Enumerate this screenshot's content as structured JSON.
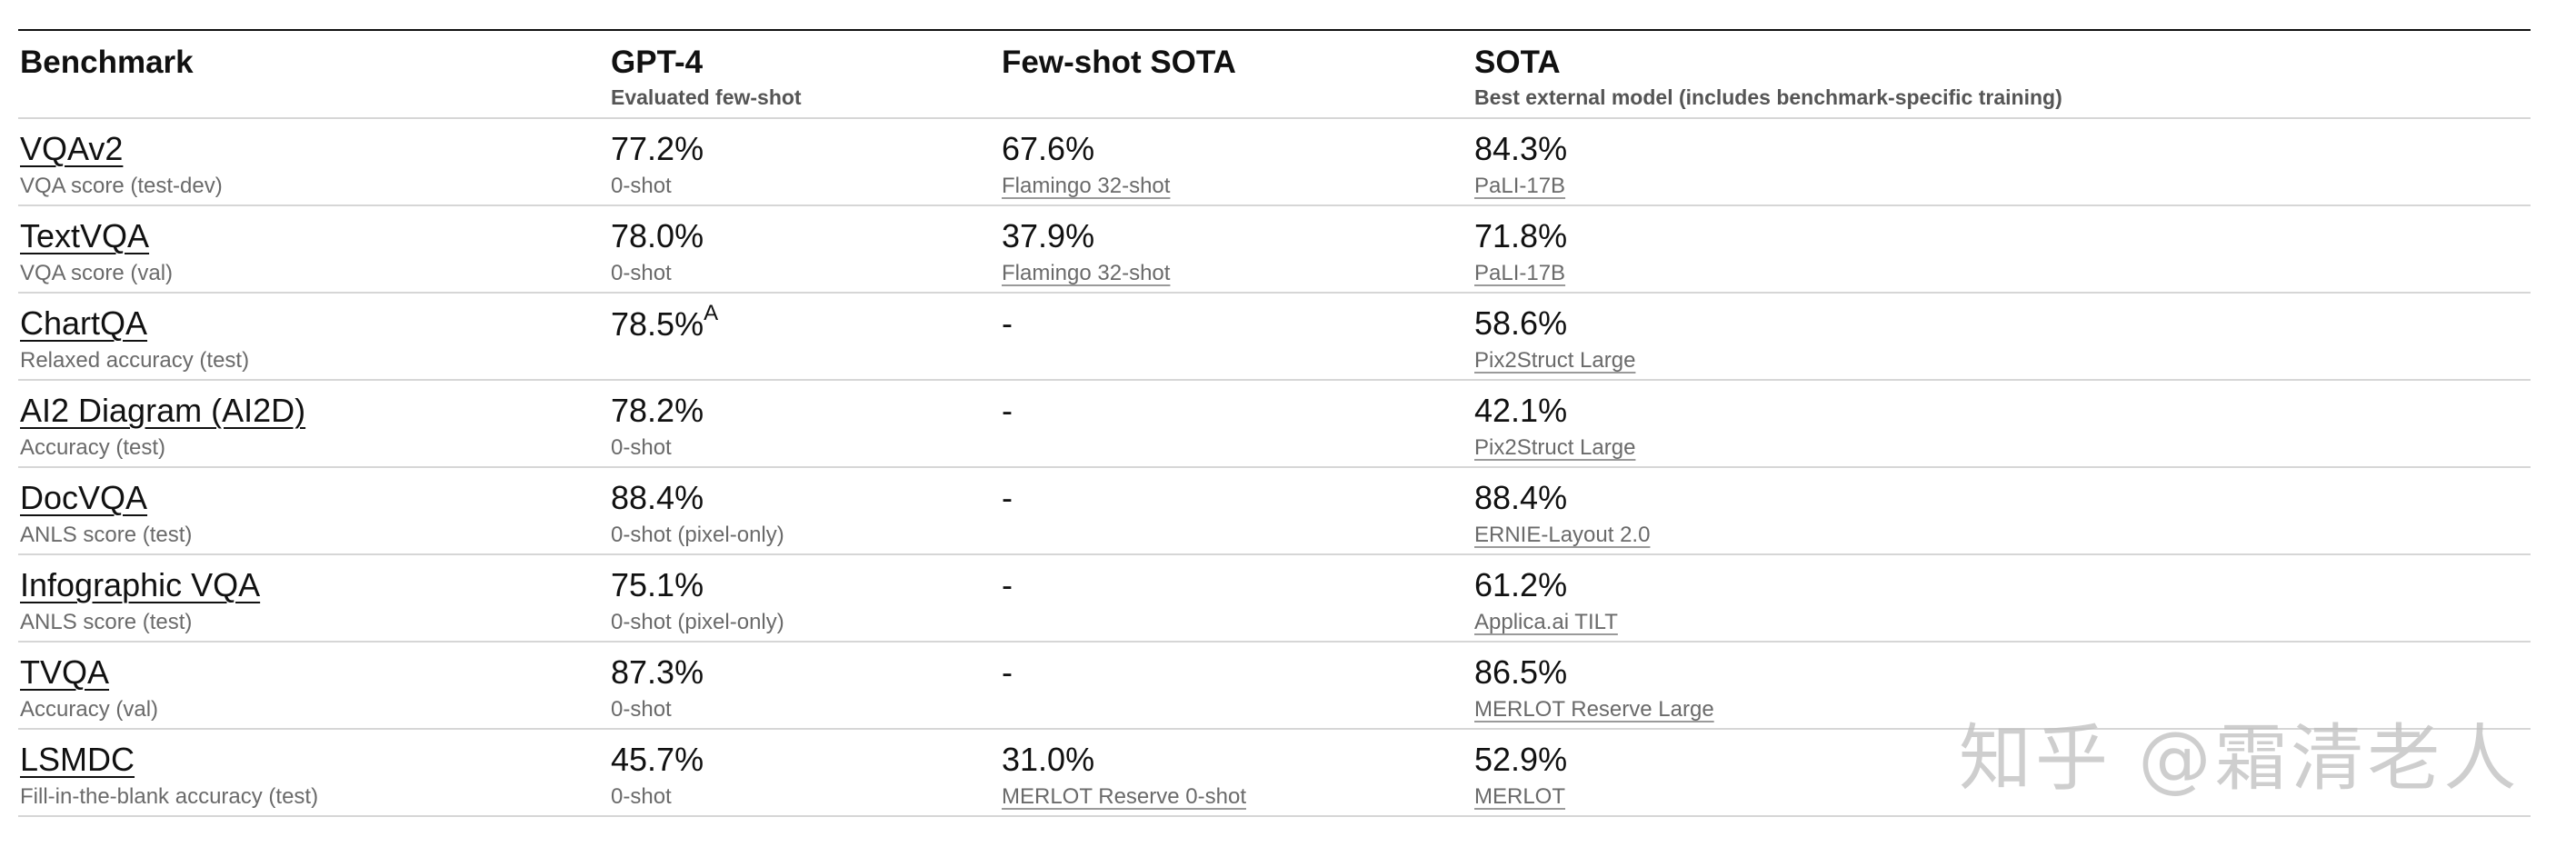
{
  "header": {
    "benchmark": "Benchmark",
    "gpt4": "GPT-4",
    "gpt4_sub": "Evaluated few-shot",
    "fewshot": "Few-shot SOTA",
    "sota": "SOTA",
    "sota_sub": "Best external model (includes benchmark-specific training)"
  },
  "rows": [
    {
      "name": "VQAv2",
      "metric": "VQA score (test-dev)",
      "gpt4": "77.2%",
      "gpt4_note": "0-shot",
      "gpt4_sup": "",
      "few": "67.6%",
      "few_src": "Flamingo 32-shot",
      "sota": "84.3%",
      "sota_src": "PaLI-17B"
    },
    {
      "name": "TextVQA",
      "metric": "VQA score (val)",
      "gpt4": "78.0%",
      "gpt4_note": "0-shot",
      "gpt4_sup": "",
      "few": "37.9%",
      "few_src": "Flamingo 32-shot",
      "sota": "71.8%",
      "sota_src": "PaLI-17B"
    },
    {
      "name": "ChartQA",
      "metric": "Relaxed accuracy (test)",
      "gpt4": "78.5%",
      "gpt4_note": "",
      "gpt4_sup": "A",
      "few": "-",
      "few_src": "",
      "sota": "58.6%",
      "sota_src": "Pix2Struct Large"
    },
    {
      "name": "AI2 Diagram (AI2D)",
      "metric": "Accuracy (test)",
      "gpt4": "78.2%",
      "gpt4_note": "0-shot",
      "gpt4_sup": "",
      "few": "-",
      "few_src": "",
      "sota": "42.1%",
      "sota_src": "Pix2Struct Large"
    },
    {
      "name": "DocVQA",
      "metric": "ANLS score (test)",
      "gpt4": "88.4%",
      "gpt4_note": "0-shot (pixel-only)",
      "gpt4_sup": "",
      "few": "-",
      "few_src": "",
      "sota": "88.4%",
      "sota_src": "ERNIE-Layout 2.0"
    },
    {
      "name": "Infographic VQA",
      "metric": "ANLS score (test)",
      "gpt4": "75.1%",
      "gpt4_note": "0-shot (pixel-only)",
      "gpt4_sup": "",
      "few": "-",
      "few_src": "",
      "sota": "61.2%",
      "sota_src": "Applica.ai TILT"
    },
    {
      "name": "TVQA",
      "metric": "Accuracy (val)",
      "gpt4": "87.3%",
      "gpt4_note": "0-shot",
      "gpt4_sup": "",
      "few": "-",
      "few_src": "",
      "sota": "86.5%",
      "sota_src": "MERLOT Reserve Large"
    },
    {
      "name": "LSMDC",
      "metric": "Fill-in-the-blank accuracy (test)",
      "gpt4": "45.7%",
      "gpt4_note": "0-shot",
      "gpt4_sup": "",
      "few": "31.0%",
      "few_src": "MERLOT Reserve 0-shot",
      "sota": "52.9%",
      "sota_src": "MERLOT"
    }
  ],
  "watermark": "知乎 @霜清老人"
}
